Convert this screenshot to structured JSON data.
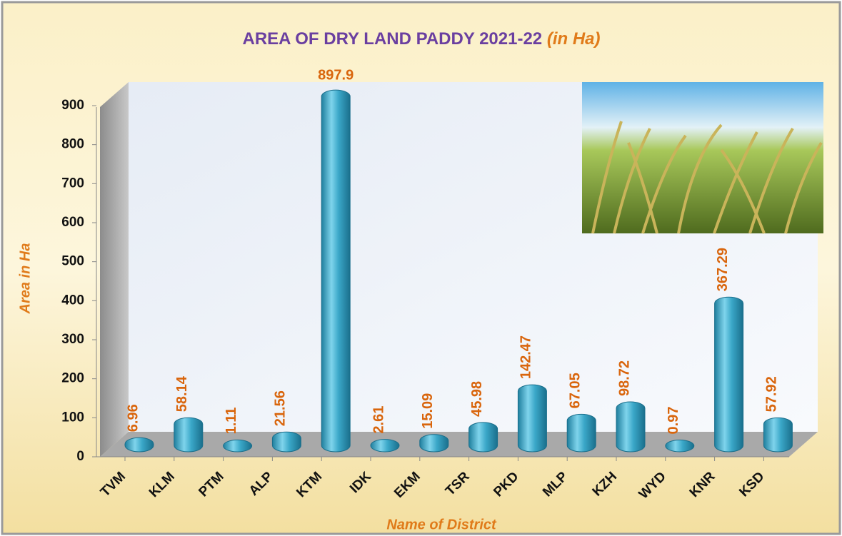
{
  "chart_data": {
    "type": "bar",
    "title": "AREA OF DRY LAND PADDY 2021-22",
    "title_suffix": "(in Ha)",
    "y_label": "Area in Ha",
    "x_label": "Name of District",
    "categories": [
      "TVM",
      "KLM",
      "PTM",
      "ALP",
      "KTM",
      "IDK",
      "EKM",
      "TSR",
      "PKD",
      "MLP",
      "KZH",
      "WYD",
      "KNR",
      "KSD"
    ],
    "values": [
      6.96,
      58.14,
      1.11,
      21.56,
      897.9,
      2.61,
      15.09,
      45.98,
      142.47,
      67.05,
      98.72,
      0.97,
      367.29,
      57.92
    ],
    "color": "#3aa7c8",
    "ylim": [
      0,
      900
    ],
    "yticks": [
      0,
      100,
      200,
      300,
      400,
      500,
      600,
      700,
      800,
      900
    ],
    "grid": false
  }
}
